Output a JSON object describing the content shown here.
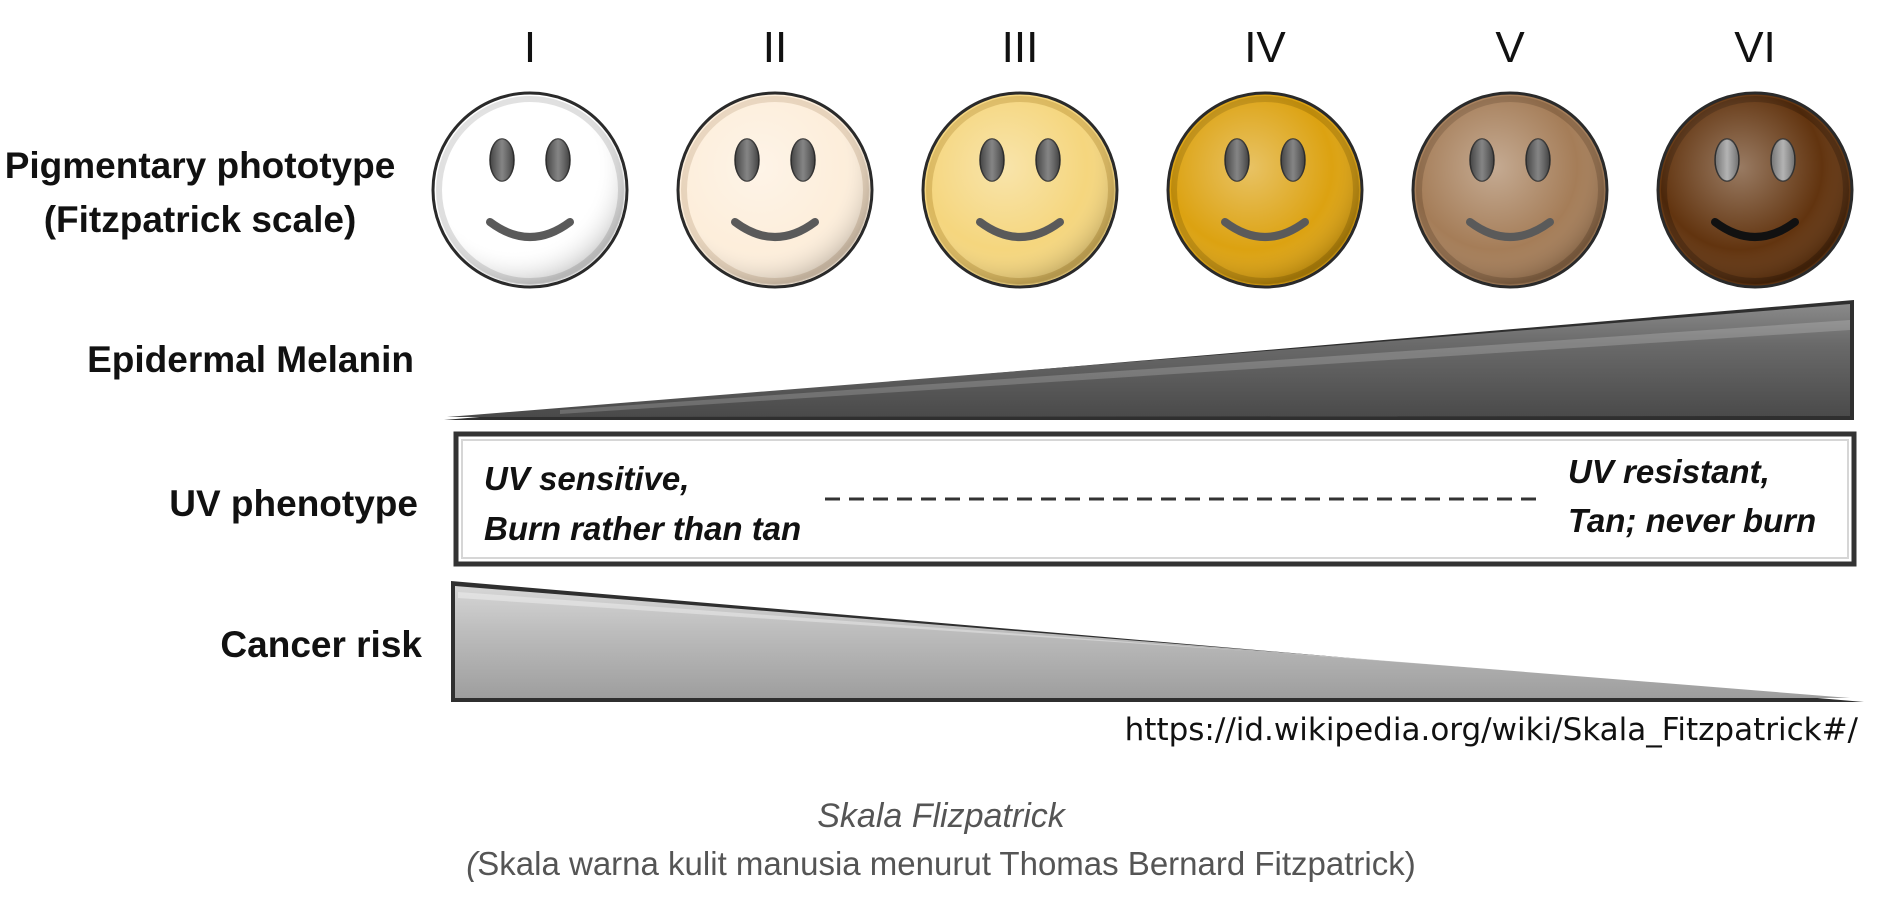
{
  "phototypes": [
    {
      "numeral": "I",
      "color": "#ffffff",
      "edge": "#c9c9c9",
      "eye": "#5c5c5c",
      "mouth": "#5a5a5a"
    },
    {
      "numeral": "II",
      "color": "#fdeedb",
      "edge": "#d9c2a5",
      "eye": "#5c5c5c",
      "mouth": "#5a5a5a"
    },
    {
      "numeral": "III",
      "color": "#f5d67e",
      "edge": "#c9a34a",
      "eye": "#5c5c5c",
      "mouth": "#5a5a5a"
    },
    {
      "numeral": "IV",
      "color": "#dca211",
      "edge": "#a87a07",
      "eye": "#5c5c5c",
      "mouth": "#5a5a5a"
    },
    {
      "numeral": "V",
      "color": "#a57d58",
      "edge": "#7b5a3c",
      "eye": "#5c5c5c",
      "mouth": "#5a5a5a"
    },
    {
      "numeral": "VI",
      "color": "#62340f",
      "edge": "#3d1f07",
      "eye": "#9a9a9a",
      "mouth": "#111111"
    }
  ],
  "rows": {
    "phototype": {
      "line1": "Pigmentary phototype",
      "line2": "(Fitzpatrick scale)"
    },
    "melanin": {
      "label": "Epidermal Melanin"
    },
    "uv": {
      "label": "UV phenotype",
      "left_line1": "UV sensitive,",
      "left_line2": "Burn rather than tan",
      "right_line1": "UV resistant,",
      "right_line2": "Tan; never burn"
    },
    "cancer": {
      "label": "Cancer risk"
    }
  },
  "source_url": "https://id.wikipedia.org/wiki/Skala_Fitzpatrick#/",
  "caption": {
    "title": "Skala Flizpatrick",
    "subtitle_paren_open": "(",
    "subtitle_body": "Skala warna kulit manusia menurut Thomas Bernard Fitzpatrick)"
  }
}
